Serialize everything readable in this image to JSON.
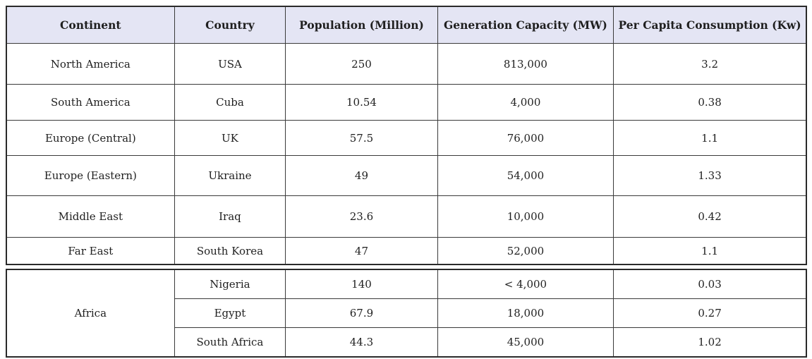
{
  "table": {
    "headers": [
      "Continent",
      "Country",
      "Population (Million)",
      "Generation Capacity (MW)",
      "Per Capita Consumption (Kw)"
    ],
    "rows": [
      {
        "continent": "North America",
        "country": "USA",
        "population": "250",
        "capacity": "813,000",
        "consumption": "3.2"
      },
      {
        "continent": "South America",
        "country": "Cuba",
        "population": "10.54",
        "capacity": "4,000",
        "consumption": "0.38"
      },
      {
        "continent": "Europe (Central)",
        "country": "UK",
        "population": "57.5",
        "capacity": "76,000",
        "consumption": "1.1"
      },
      {
        "continent": "Europe (Eastern)",
        "country": "Ukraine",
        "population": "49",
        "capacity": "54,000",
        "consumption": "1.33"
      },
      {
        "continent": "Middle East",
        "country": "Iraq",
        "population": "23.6",
        "capacity": "10,000",
        "consumption": "0.42"
      },
      {
        "continent": "Far East",
        "country": "South Korea",
        "population": "47",
        "capacity": "52,000",
        "consumption": "1.1"
      }
    ],
    "africa_group": {
      "continent": "Africa",
      "rows": [
        {
          "country": "Nigeria",
          "population": "140",
          "capacity": "< 4,000",
          "consumption": "0.03"
        },
        {
          "country": "Egypt",
          "population": "67.9",
          "capacity": "18,000",
          "consumption": "0.27"
        },
        {
          "country": "South Africa",
          "population": "44.3",
          "capacity": "45,000",
          "consumption": "1.02"
        }
      ]
    },
    "colors": {
      "header_bg": "#e4e5f4",
      "border": "#3a3a3a",
      "outer_border": "#2a2a2a",
      "text": "#1f1f1f"
    }
  },
  "chart_data": {
    "type": "table",
    "title": "",
    "columns": [
      "Continent",
      "Country",
      "Population (Million)",
      "Generation Capacity (MW)",
      "Per Capita Consumption (Kw)"
    ],
    "rows": [
      [
        "North America",
        "USA",
        "250",
        "813,000",
        "3.2"
      ],
      [
        "South America",
        "Cuba",
        "10.54",
        "4,000",
        "0.38"
      ],
      [
        "Europe (Central)",
        "UK",
        "57.5",
        "76,000",
        "1.1"
      ],
      [
        "Europe (Eastern)",
        "Ukraine",
        "49",
        "54,000",
        "1.33"
      ],
      [
        "Middle East",
        "Iraq",
        "23.6",
        "10,000",
        "0.42"
      ],
      [
        "Far East",
        "South Korea",
        "47",
        "52,000",
        "1.1"
      ],
      [
        "Africa",
        "Nigeria",
        "140",
        "< 4,000",
        "0.03"
      ],
      [
        "Africa",
        "Egypt",
        "67.9",
        "18,000",
        "0.27"
      ],
      [
        "Africa",
        "South Africa",
        "44.3",
        "45,000",
        "1.02"
      ]
    ]
  }
}
